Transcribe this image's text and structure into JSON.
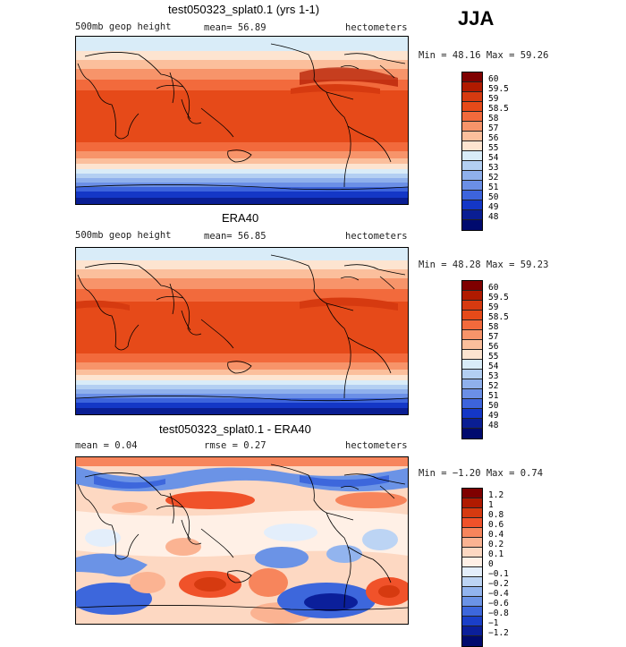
{
  "season": "JJA",
  "panels": [
    {
      "title": "test050323_splat0.1 (yrs 1-1)",
      "left_label": "500mb geop height",
      "mid_label": "mean=  56.89",
      "right_label": "hectometers",
      "minmax": "Min =  48.16 Max =  59.26",
      "legend": [
        "60",
        "59.5",
        "59",
        "58.5",
        "58",
        "57",
        "56",
        "55",
        "54",
        "53",
        "52",
        "51",
        "50",
        "49",
        "48"
      ]
    },
    {
      "title": "ERA40",
      "left_label": "500mb geop height",
      "mid_label": "mean=  56.85",
      "right_label": "hectometers",
      "minmax": "Min =  48.28 Max =  59.23",
      "legend": [
        "60",
        "59.5",
        "59",
        "58.5",
        "58",
        "57",
        "56",
        "55",
        "54",
        "53",
        "52",
        "51",
        "50",
        "49",
        "48"
      ]
    },
    {
      "title": "test050323_splat0.1 - ERA40",
      "left_label": "mean =    0.04",
      "mid_label": "rmse =    0.27",
      "right_label": "hectometers",
      "minmax": "Min =  −1.20 Max =   0.74",
      "legend": [
        "1.2",
        "1",
        "0.8",
        "0.6",
        "0.4",
        "0.2",
        "0.1",
        "0",
        "−0.1",
        "−0.2",
        "−0.4",
        "−0.6",
        "−0.8",
        "−1",
        "−1.2"
      ]
    }
  ],
  "colors": {
    "abs_scale": [
      "#7f0000",
      "#b01a00",
      "#d63a10",
      "#e64a19",
      "#f26a3c",
      "#f7946a",
      "#fbbf9c",
      "#fde4d0",
      "#d9ecf8",
      "#b3cff2",
      "#8fb0ec",
      "#6b8fe6",
      "#3d64dc",
      "#1437c6",
      "#0a1e93",
      "#000a6e"
    ],
    "diff_scale": [
      "#7f0000",
      "#b01a00",
      "#d63a10",
      "#f0522a",
      "#f7855c",
      "#fbb392",
      "#fdd8c2",
      "#fff0e6",
      "#e3eefb",
      "#bcd4f4",
      "#92b4ee",
      "#6b93e6",
      "#3d67dc",
      "#1a3fc8",
      "#0b1f9a",
      "#000a6e"
    ]
  }
}
